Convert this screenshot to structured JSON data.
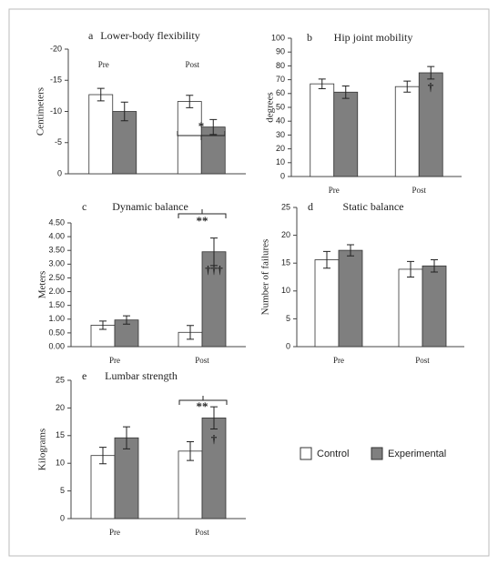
{
  "legend": [
    {
      "name": "Control",
      "color": "#ffffff"
    },
    {
      "name": "Experimental",
      "color": "#7f7f7f"
    }
  ],
  "chart_data": [
    {
      "type": "bar",
      "panel": "a",
      "title": "Lower-body flexibility",
      "y_label": "Centimeters",
      "categories": [
        "Pre",
        "Post"
      ],
      "series": [
        {
          "values": [
            -12.7,
            -11.6
          ],
          "errors": [
            1,
            1
          ]
        },
        {
          "values": [
            -10,
            -7.5
          ],
          "errors": [
            1.5,
            1.2
          ]
        }
      ],
      "ylim": [
        0,
        -20
      ],
      "yticks": [
        0,
        -5,
        -10,
        -15,
        -20
      ],
      "annotations": [
        "*"
      ]
    },
    {
      "type": "bar",
      "panel": "b",
      "title": "Hip joint mobility",
      "y_label": "degrees",
      "categories": [
        "Pre",
        "Post"
      ],
      "series": [
        {
          "values": [
            67,
            65
          ],
          "errors": [
            3.5,
            4
          ]
        },
        {
          "values": [
            61,
            75
          ],
          "errors": [
            4.5,
            4.5
          ]
        }
      ],
      "ylim": [
        0,
        100
      ],
      "yticks": [
        0,
        10,
        20,
        30,
        40,
        50,
        60,
        70,
        80,
        90,
        100
      ],
      "annotations": [
        "†"
      ]
    },
    {
      "type": "bar",
      "panel": "c",
      "title": "Dynamic balance",
      "y_label": "Meters",
      "categories": [
        "Pre",
        "Post"
      ],
      "series": [
        {
          "values": [
            0.78,
            0.52
          ],
          "errors": [
            0.15,
            0.25
          ]
        },
        {
          "values": [
            0.97,
            3.45
          ],
          "errors": [
            0.15,
            0.5
          ]
        }
      ],
      "ylim": [
        0,
        4.5
      ],
      "yticks": [
        {
          "value": 0,
          "label": "0.00"
        },
        {
          "value": 0.5,
          "label": "0.50"
        },
        {
          "value": 1,
          "label": "1.00"
        },
        {
          "value": 1.5,
          "label": "1.50"
        },
        {
          "value": 2,
          "label": "2.00"
        },
        {
          "value": 2.5,
          "label": "2.50"
        },
        {
          "value": 3,
          "label": "3.00"
        },
        {
          "value": 3.5,
          "label": "3.50"
        },
        {
          "value": 4,
          "label": "4.00"
        },
        {
          "value": 4.5,
          "label": "4.50"
        }
      ],
      "annotations": [
        "**",
        "†††"
      ]
    },
    {
      "type": "bar",
      "panel": "d",
      "title": "Static balance",
      "y_label": "Number of failures",
      "categories": [
        "Pre",
        "Post"
      ],
      "series": [
        {
          "values": [
            15.6,
            13.9
          ],
          "errors": [
            1.5,
            1.4
          ]
        },
        {
          "values": [
            17.3,
            14.5
          ],
          "errors": [
            1,
            1.1
          ]
        }
      ],
      "ylim": [
        0,
        25
      ],
      "yticks": [
        0,
        5,
        10,
        15,
        20,
        25
      ],
      "annotations": []
    },
    {
      "type": "bar",
      "panel": "e",
      "title": "Lumbar strength",
      "y_label": "Kilograms",
      "categories": [
        "Pre",
        "Post"
      ],
      "series": [
        {
          "values": [
            11.4,
            12.2
          ],
          "errors": [
            1.5,
            1.7
          ]
        },
        {
          "values": [
            14.6,
            18.2
          ],
          "errors": [
            2,
            2
          ]
        }
      ],
      "ylim": [
        0,
        25
      ],
      "yticks": [
        0,
        5,
        10,
        15,
        20,
        25
      ],
      "annotations": [
        "**",
        "†"
      ]
    }
  ]
}
